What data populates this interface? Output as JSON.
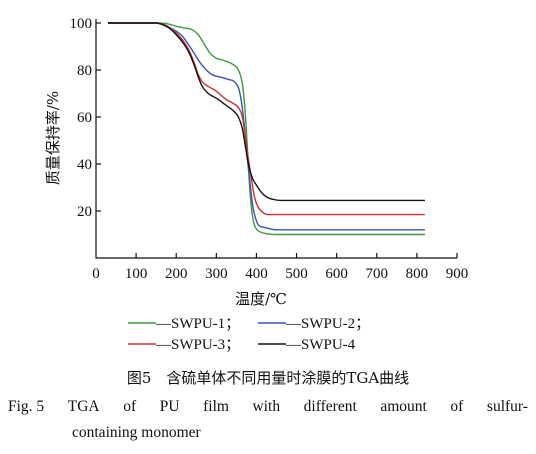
{
  "chart_data": {
    "type": "line",
    "xlabel": "温度/℃",
    "ylabel": "质量保持率/%",
    "xlim": [
      0,
      900
    ],
    "ylim": [
      0,
      100
    ],
    "x_ticks": [
      "0",
      "100",
      "200",
      "300",
      "400",
      "500",
      "600",
      "700",
      "800",
      "900"
    ],
    "y_ticks": [
      "20",
      "40",
      "60",
      "80",
      "100"
    ],
    "grid": false,
    "legend_position": "bottom",
    "series": [
      {
        "name": "—SWPU-1；",
        "color": "#3a9a3a",
        "points": [
          [
            30,
            100
          ],
          [
            150,
            100
          ],
          [
            180,
            99.6
          ],
          [
            200,
            98.6
          ],
          [
            220,
            97.9
          ],
          [
            240,
            97.1
          ],
          [
            255,
            95
          ],
          [
            270,
            91
          ],
          [
            285,
            87
          ],
          [
            300,
            85
          ],
          [
            320,
            84
          ],
          [
            340,
            82.5
          ],
          [
            355,
            80
          ],
          [
            365,
            74
          ],
          [
            372,
            62
          ],
          [
            378,
            45
          ],
          [
            384,
            28
          ],
          [
            390,
            18
          ],
          [
            395,
            14
          ],
          [
            402,
            12
          ],
          [
            420,
            10.5
          ],
          [
            450,
            10
          ],
          [
            600,
            10
          ],
          [
            820,
            10
          ]
        ]
      },
      {
        "name": "—SWPU-2；",
        "color": "#3a52b8",
        "points": [
          [
            30,
            100
          ],
          [
            150,
            100
          ],
          [
            170,
            99.3
          ],
          [
            185,
            98
          ],
          [
            200,
            96.5
          ],
          [
            215,
            94.5
          ],
          [
            230,
            91
          ],
          [
            245,
            87
          ],
          [
            260,
            83
          ],
          [
            275,
            80
          ],
          [
            290,
            78
          ],
          [
            310,
            77
          ],
          [
            330,
            76
          ],
          [
            345,
            75
          ],
          [
            356,
            72
          ],
          [
            363,
            66
          ],
          [
            370,
            56
          ],
          [
            377,
            43
          ],
          [
            384,
            32
          ],
          [
            390,
            23
          ],
          [
            396,
            18
          ],
          [
            405,
            14
          ],
          [
            420,
            13
          ],
          [
            450,
            12
          ],
          [
            600,
            12
          ],
          [
            820,
            12
          ]
        ]
      },
      {
        "name": "—SWPU-3；",
        "color": "#cc3030",
        "points": [
          [
            30,
            100
          ],
          [
            150,
            100
          ],
          [
            170,
            99.2
          ],
          [
            185,
            97.8
          ],
          [
            200,
            95.8
          ],
          [
            215,
            93
          ],
          [
            230,
            89
          ],
          [
            245,
            83
          ],
          [
            255,
            78
          ],
          [
            265,
            75
          ],
          [
            280,
            73
          ],
          [
            300,
            71
          ],
          [
            320,
            68
          ],
          [
            340,
            66
          ],
          [
            355,
            64
          ],
          [
            365,
            60
          ],
          [
            372,
            52
          ],
          [
            380,
            42
          ],
          [
            388,
            33
          ],
          [
            395,
            26
          ],
          [
            403,
            22
          ],
          [
            415,
            19.5
          ],
          [
            430,
            18.5
          ],
          [
            470,
            18.5
          ],
          [
            600,
            18.5
          ],
          [
            820,
            18.5
          ]
        ]
      },
      {
        "name": "—SWPU-4",
        "color": "#111111",
        "points": [
          [
            30,
            100
          ],
          [
            150,
            100
          ],
          [
            170,
            99
          ],
          [
            185,
            97.5
          ],
          [
            200,
            95
          ],
          [
            215,
            92
          ],
          [
            230,
            88
          ],
          [
            245,
            82
          ],
          [
            255,
            77
          ],
          [
            265,
            73
          ],
          [
            280,
            70
          ],
          [
            300,
            68
          ],
          [
            320,
            65.5
          ],
          [
            340,
            63
          ],
          [
            355,
            60
          ],
          [
            365,
            55
          ],
          [
            372,
            48
          ],
          [
            380,
            40
          ],
          [
            390,
            34
          ],
          [
            400,
            31
          ],
          [
            412,
            28
          ],
          [
            425,
            26
          ],
          [
            440,
            25
          ],
          [
            460,
            24.5
          ],
          [
            600,
            24.5
          ],
          [
            820,
            24.5
          ]
        ]
      }
    ]
  },
  "caption_cn": "图5　含硫单体不同用量时涂膜的TGA曲线",
  "caption_en_prefix": "Fig. 5",
  "caption_en_line1": [
    "TGA",
    "of",
    "PU",
    "film",
    "with",
    "different",
    "amount",
    "of",
    "sulfur-"
  ],
  "caption_en_line2": "containing monomer"
}
